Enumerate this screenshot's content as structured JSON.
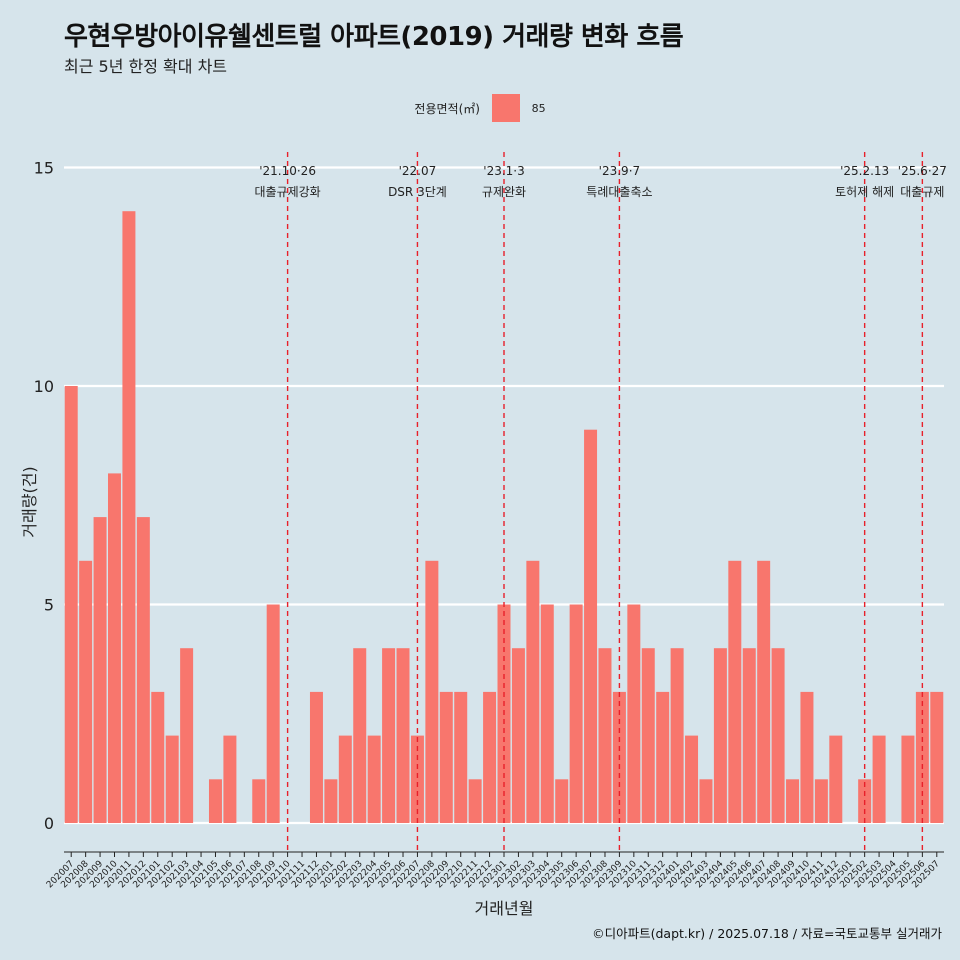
{
  "header": {
    "title": "우현우방아이유쉘센트럴 아파트(2019) 거래량 변화 흐름",
    "subtitle": "최근 5년 한정 확대 차트"
  },
  "legend": {
    "title": "전용면적(㎡)",
    "items": [
      {
        "label": "85",
        "color": "#f8766d"
      }
    ]
  },
  "caption": "©디아파트(dapt.kr) / 2025.07.18 / 자료=국토교통부 실거래가",
  "chart_data": {
    "type": "bar",
    "xlabel": "거래년월",
    "ylabel": "거래량(건)",
    "ylim": [
      0,
      15
    ],
    "yticks": [
      0,
      5,
      10,
      15
    ],
    "bar_color": "#f8766d",
    "categories": [
      "202007",
      "202008",
      "202009",
      "202010",
      "202011",
      "202012",
      "202101",
      "202102",
      "202103",
      "202104",
      "202105",
      "202106",
      "202107",
      "202108",
      "202109",
      "202110",
      "202111",
      "202112",
      "202201",
      "202202",
      "202203",
      "202204",
      "202205",
      "202206",
      "202207",
      "202208",
      "202209",
      "202210",
      "202211",
      "202212",
      "202301",
      "202302",
      "202303",
      "202304",
      "202305",
      "202306",
      "202307",
      "202308",
      "202309",
      "202310",
      "202311",
      "202312",
      "202401",
      "202402",
      "202403",
      "202404",
      "202405",
      "202406",
      "202407",
      "202408",
      "202409",
      "202410",
      "202411",
      "202412",
      "202501",
      "202502",
      "202503",
      "202504",
      "202505",
      "202506",
      "202507"
    ],
    "values": [
      10,
      6,
      7,
      8,
      14,
      7,
      3,
      2,
      4,
      0,
      1,
      2,
      0,
      1,
      5,
      0,
      0,
      3,
      1,
      2,
      4,
      2,
      4,
      4,
      2,
      6,
      3,
      3,
      1,
      3,
      5,
      4,
      6,
      5,
      1,
      5,
      9,
      4,
      3,
      5,
      4,
      3,
      4,
      2,
      1,
      4,
      6,
      4,
      6,
      4,
      1,
      3,
      1,
      2,
      0,
      1,
      2,
      0,
      2,
      3,
      3
    ],
    "annotations": [
      {
        "at": "202110",
        "line1": "'21.10·26",
        "line2": "대출규제강화"
      },
      {
        "at": "202207",
        "line1": "'22.07",
        "line2": "DSR 3단계"
      },
      {
        "at": "202301",
        "line1": "'23.1·3",
        "line2": "규제완화"
      },
      {
        "at": "202309",
        "line1": "'23.9·7",
        "line2": "특례대출축소"
      },
      {
        "at": "202502",
        "line1": "'25.2.13",
        "line2": "토허제 해제"
      },
      {
        "at": "202506",
        "line1": "'25.6·27",
        "line2": "대출규제"
      }
    ]
  }
}
